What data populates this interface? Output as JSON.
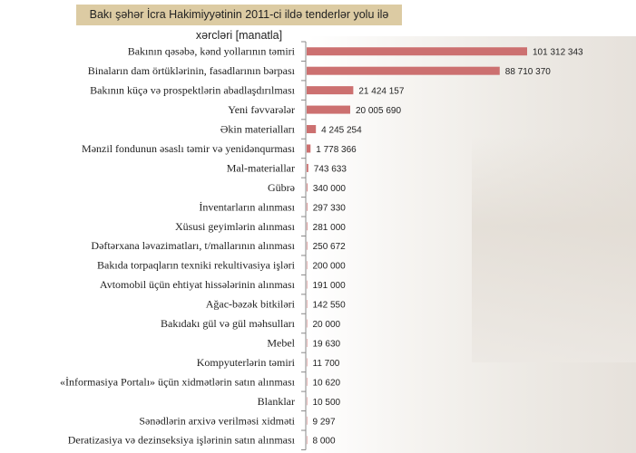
{
  "chart_data": {
    "type": "bar",
    "orientation": "horizontal",
    "title": "Bakı şəhər İcra Hakimiyyətinin 2011-ci ildə tenderlər yolu ilə xərcləri [manatla]",
    "xlabel": "",
    "ylabel": "",
    "grid": false,
    "bar_color": "#cc7070",
    "categories": [
      "Bakının qəsəbə,  kənd  yollarının təmiri",
      "Binaların dam örtüklərinin,  fasadlarının bərpası",
      "Bakının küçə və prospektlərin  abadlaşdırılması",
      "Yeni fəvvarələr",
      "Əkin materialları",
      "Mənzil fondunun əsaslı təmir və yenidənqurması",
      "Mal-materiallar",
      "Gübrə",
      "İnventarların alınması",
      "Xüsusi geyimlərin alınması",
      "Dəftərxana ləvazimatları, t/mallarının alınması",
      "Bakıda torpaqların texniki rekultivasiya işləri",
      "Avtomobil üçün ehtiyat hissələrinin alınması",
      "Ağac-bəzək bitkiləri",
      "Bakıdakı gül və gül məhsulları",
      "Mebel",
      "Kompyuterlərin təmiri",
      "«İnformasiya Portalı» üçün xidmətlərin satın alınması",
      "Blanklar",
      "Sənədlərin arxivə verilməsi xidməti",
      "Deratizasiya və dezinseksiya işlərinin satın alınması"
    ],
    "values": [
      101312343,
      88710370,
      21424157,
      20005690,
      4245254,
      1778366,
      743633,
      340000,
      297330,
      281000,
      250672,
      200000,
      191000,
      142550,
      20000,
      19630,
      11700,
      10620,
      10500,
      9297,
      8000
    ],
    "data_labels": [
      "101 312 343",
      "88 710 370",
      "21 424 157",
      "20 005 690",
      "4 245 254",
      "1 778 366",
      "743 633",
      "340 000",
      "297 330",
      "281 000",
      "250 672",
      "200 000",
      "191 000",
      "142 550",
      "20 000",
      "19 630",
      "11 700",
      "10 620",
      "10 500",
      "9 297",
      "8 000"
    ]
  }
}
